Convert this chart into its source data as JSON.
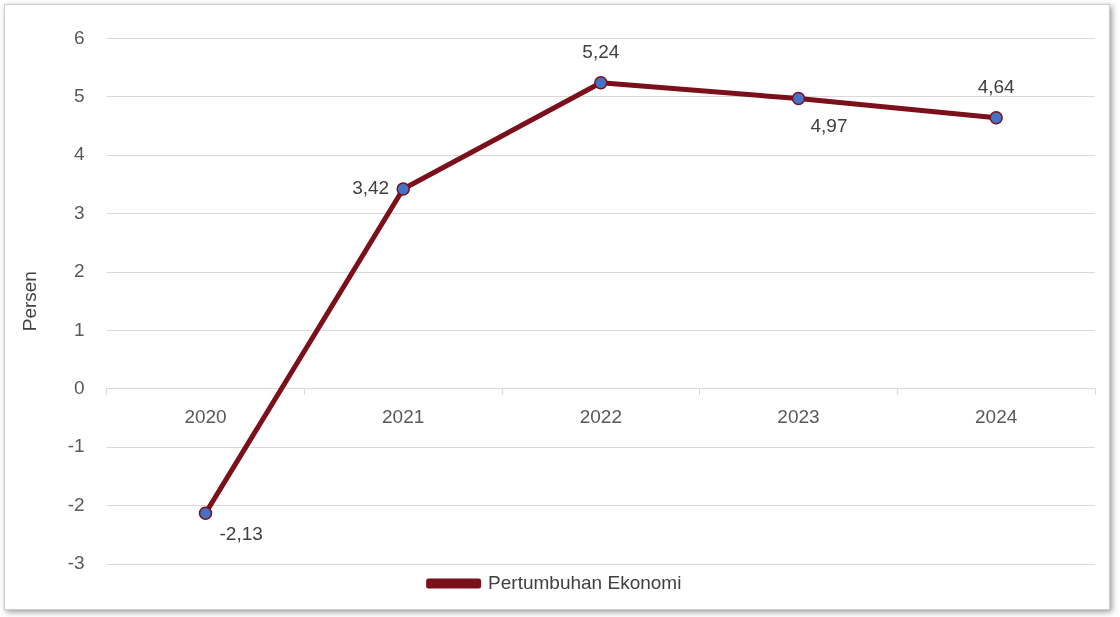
{
  "chart_data": {
    "type": "line",
    "ylabel": "Persen",
    "categories": [
      "2020",
      "2021",
      "2022",
      "2023",
      "2024"
    ],
    "series": [
      {
        "name": "Pertumbuhan Ekonomi",
        "color": "#7b0f1a",
        "values": [
          -2.13,
          3.42,
          5.24,
          4.97,
          4.64
        ],
        "value_labels": [
          "-2,13",
          "3,42",
          "5,24",
          "4,97",
          "4,64"
        ]
      }
    ],
    "ylim": [
      -3,
      6
    ],
    "yticks": [
      -3,
      -2,
      -1,
      0,
      1,
      2,
      3,
      4,
      5,
      6
    ],
    "grid": "y",
    "legend": "bottom",
    "marker": "circle",
    "line_style": "solid"
  }
}
